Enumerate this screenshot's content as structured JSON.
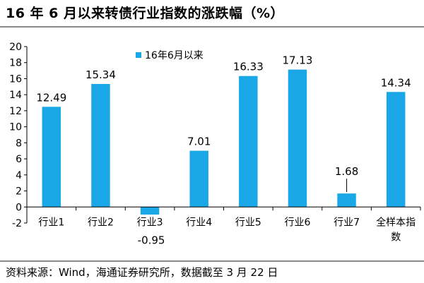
{
  "title": "16 年 6 月以来转债行业指数的涨跌幅（%）",
  "source": "资料来源：Wind，海通证券研究所，数据截至 3 月 22 日",
  "chart_data": {
    "type": "bar",
    "categories": [
      "行业1",
      "行业2",
      "行业3",
      "行业4",
      "行业5",
      "行业6",
      "行业7",
      "全样本指数"
    ],
    "category_lines": [
      [
        "行业1"
      ],
      [
        "行业2"
      ],
      [
        "行业3"
      ],
      [
        "行业4"
      ],
      [
        "行业5"
      ],
      [
        "行业6"
      ],
      [
        "行业7"
      ],
      [
        "全样本指",
        "数"
      ]
    ],
    "series": [
      {
        "name": "16年6月以来",
        "values": [
          12.49,
          15.34,
          -0.95,
          7.01,
          16.33,
          17.13,
          1.68,
          14.34
        ]
      }
    ],
    "value_labels": [
      "12.49",
      "15.34",
      "-0.95",
      "7.01",
      "16.33",
      "17.13",
      "1.68",
      "14.34"
    ],
    "yticks": [
      "-2",
      "0",
      "2",
      "4",
      "6",
      "8",
      "10",
      "12",
      "14",
      "16",
      "18",
      "20"
    ],
    "ylim": [
      -2,
      20
    ],
    "bar_color": "#1aa7e8",
    "legend_position": "top-left",
    "grid": false
  }
}
